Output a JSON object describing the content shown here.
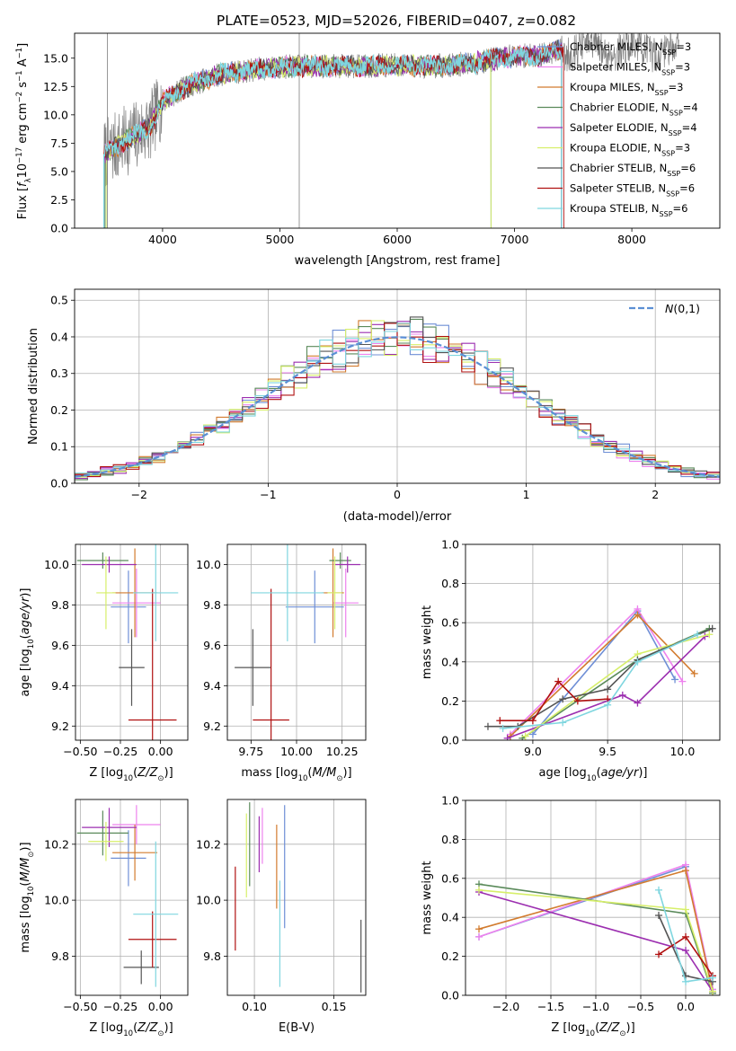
{
  "figure": {
    "title": "PLATE=0523, MJD=52026, FIBERID=0407, z=0.082"
  },
  "colors": {
    "chabrier_miles": "#6f8fd6",
    "salpeter_miles": "#ee82ee",
    "kroupa_miles": "#d27b2e",
    "chabrier_elodie": "#5a8a5a",
    "salpeter_elodie": "#9c2fb0",
    "kroupa_elodie": "#d7ef6a",
    "chabrier_stelib": "#555555",
    "salpeter_stelib": "#b01010",
    "kroupa_stelib": "#7fd6df",
    "normal_curve": "#5b8fd4",
    "grid": "#b0b0b0"
  },
  "chart_data": [
    {
      "id": "spectrum",
      "type": "line",
      "xlabel": "wavelength [Angstrom, rest frame]",
      "ylabel": "Flux [f_λ10^-17 erg cm^-2 s^-1 A^-1]",
      "xlim": [
        3250,
        8750
      ],
      "ylim": [
        0,
        17.2
      ],
      "xticks": [
        4000,
        5000,
        6000,
        7000,
        8000
      ],
      "yticks": [
        0.0,
        2.5,
        5.0,
        7.5,
        10.0,
        12.5,
        15.0
      ],
      "grid": false,
      "legend_position": "upper-right",
      "legend": [
        {
          "key": "chabrier_miles",
          "label": "Chabrier MILES, N",
          "sub": "SSP",
          "suffix": "=3"
        },
        {
          "key": "salpeter_miles",
          "label": "Salpeter MILES, N",
          "sub": "SSP",
          "suffix": "=3"
        },
        {
          "key": "kroupa_miles",
          "label": "Kroupa MILES, N",
          "sub": "SSP",
          "suffix": "=3"
        },
        {
          "key": "chabrier_elodie",
          "label": "Chabrier ELODIE, N",
          "sub": "SSP",
          "suffix": "=4"
        },
        {
          "key": "salpeter_elodie",
          "label": "Salpeter ELODIE, N",
          "sub": "SSP",
          "suffix": "=4"
        },
        {
          "key": "kroupa_elodie",
          "label": "Kroupa ELODIE, N",
          "sub": "SSP",
          "suffix": "=3"
        },
        {
          "key": "chabrier_stelib",
          "label": "Chabrier STELIB, N",
          "sub": "SSP",
          "suffix": "=6"
        },
        {
          "key": "salpeter_stelib",
          "label": "Salpeter STELIB, N",
          "sub": "SSP",
          "suffix": "=6"
        },
        {
          "key": "kroupa_stelib",
          "label": "Kroupa STELIB, N",
          "sub": "SSP",
          "suffix": "=6"
        }
      ],
      "continuum_x": [
        3500,
        3700,
        3900,
        4000,
        4200,
        4500,
        4800,
        5000,
        5200,
        5500,
        5800,
        6000,
        6300,
        6600,
        7000,
        7200,
        7400
      ],
      "continuum_y": [
        6.5,
        7.8,
        9.0,
        11.2,
        12.5,
        13.6,
        14.0,
        14.2,
        14.3,
        14.3,
        14.3,
        14.4,
        14.3,
        14.5,
        15.2,
        15.2,
        15.8
      ]
    },
    {
      "id": "residuals",
      "type": "histogram",
      "xlabel": "(data-model)/error",
      "ylabel": "Normed distribution",
      "xlim": [
        -2.5,
        2.5
      ],
      "ylim": [
        0,
        0.53
      ],
      "xticks": [
        -2,
        -1,
        0,
        1,
        2
      ],
      "yticks": [
        0.0,
        0.1,
        0.2,
        0.3,
        0.4,
        0.5
      ],
      "grid": true,
      "legend_position": "upper-right",
      "curve_label": "N(0,1)",
      "bin_width": 0.1
    },
    {
      "id": "age_vs_Z",
      "type": "errorbar",
      "xlabel": "Z [log10(Z/Z⊙)]",
      "ylabel": "age [log10(age/yr)]",
      "xlim": [
        -0.53,
        0.17
      ],
      "ylim": [
        9.13,
        10.1
      ],
      "xticks": [
        -0.5,
        -0.25,
        0.0
      ],
      "yticks": [
        9.2,
        9.4,
        9.6,
        9.8,
        10.0
      ],
      "grid": true,
      "points": [
        {
          "key": "chabrier_miles",
          "x": -0.2,
          "xerr": 0.11,
          "y": 9.79,
          "yerr": 0.18
        },
        {
          "key": "salpeter_miles",
          "x": -0.15,
          "xerr": 0.15,
          "y": 9.81,
          "yerr": 0.17
        },
        {
          "key": "kroupa_miles",
          "x": -0.16,
          "xerr": 0.14,
          "y": 9.86,
          "yerr": 0.22
        },
        {
          "key": "chabrier_elodie",
          "x": -0.36,
          "xerr": 0.16,
          "y": 10.02,
          "yerr": 0.04
        },
        {
          "key": "salpeter_elodie",
          "x": -0.32,
          "xerr": 0.17,
          "y": 10.0,
          "yerr": 0.04
        },
        {
          "key": "kroupa_elodie",
          "x": -0.34,
          "xerr": 0.06,
          "y": 9.86,
          "yerr": 0.18
        },
        {
          "key": "chabrier_stelib",
          "x": -0.18,
          "xerr": 0.08,
          "y": 9.49,
          "yerr": 0.19
        },
        {
          "key": "salpeter_stelib",
          "x": -0.05,
          "xerr": 0.15,
          "y": 9.23,
          "yerr": 0.65
        },
        {
          "key": "kroupa_stelib",
          "x": -0.03,
          "xerr": 0.14,
          "y": 9.86,
          "yerr": 0.24
        }
      ]
    },
    {
      "id": "age_vs_mass",
      "type": "errorbar",
      "xlabel": "mass [log10(M/M⊙)]",
      "ylabel": "",
      "xlim": [
        9.62,
        10.38
      ],
      "ylim": [
        9.13,
        10.1
      ],
      "xticks": [
        9.75,
        10.0,
        10.25
      ],
      "yticks": [
        9.2,
        9.4,
        9.6,
        9.8,
        10.0
      ],
      "grid": true,
      "points": [
        {
          "key": "chabrier_miles",
          "x": 10.1,
          "xerr": 0.16,
          "y": 9.79,
          "yerr": 0.18
        },
        {
          "key": "salpeter_miles",
          "x": 10.27,
          "xerr": 0.07,
          "y": 9.81,
          "yerr": 0.17
        },
        {
          "key": "kroupa_miles",
          "x": 10.2,
          "xerr": 0.06,
          "y": 9.86,
          "yerr": 0.22
        },
        {
          "key": "chabrier_elodie",
          "x": 10.24,
          "xerr": 0.06,
          "y": 10.02,
          "yerr": 0.04
        },
        {
          "key": "salpeter_elodie",
          "x": 10.28,
          "xerr": 0.07,
          "y": 10.0,
          "yerr": 0.04
        },
        {
          "key": "kroupa_elodie",
          "x": 10.21,
          "xerr": 0.04,
          "y": 9.86,
          "yerr": 0.18
        },
        {
          "key": "chabrier_stelib",
          "x": 9.76,
          "xerr": 0.1,
          "y": 9.49,
          "yerr": 0.19
        },
        {
          "key": "salpeter_stelib",
          "x": 9.86,
          "xerr": 0.1,
          "y": 9.23,
          "yerr": 0.65
        },
        {
          "key": "kroupa_stelib",
          "x": 9.95,
          "xerr": 0.2,
          "y": 9.86,
          "yerr": 0.24
        }
      ]
    },
    {
      "id": "weight_vs_age",
      "type": "line",
      "xlabel": "age [log10(age/yr)]",
      "ylabel": "mass weight",
      "xlim": [
        8.55,
        10.25
      ],
      "ylim": [
        0,
        1.0
      ],
      "xticks": [
        9.0,
        9.5,
        10.0
      ],
      "yticks": [
        0.0,
        0.2,
        0.4,
        0.6,
        0.8,
        1.0
      ],
      "grid": true,
      "series": [
        {
          "key": "chabrier_miles",
          "x": [
            9.0,
            9.7,
            9.95
          ],
          "y": [
            0.03,
            0.66,
            0.31
          ]
        },
        {
          "key": "salpeter_miles",
          "x": [
            8.85,
            9.7,
            10.0
          ],
          "y": [
            0.03,
            0.67,
            0.3
          ]
        },
        {
          "key": "kroupa_miles",
          "x": [
            8.85,
            9.7,
            10.08
          ],
          "y": [
            0.02,
            0.64,
            0.34
          ]
        },
        {
          "key": "chabrier_elodie",
          "x": [
            8.93,
            9.7,
            10.18
          ],
          "y": [
            0.01,
            0.41,
            0.57
          ]
        },
        {
          "key": "salpeter_elodie",
          "x": [
            8.83,
            9.6,
            9.7,
            10.15
          ],
          "y": [
            0.01,
            0.23,
            0.19,
            0.53
          ]
        },
        {
          "key": "kroupa_elodie",
          "x": [
            8.95,
            9.7,
            10.18
          ],
          "y": [
            0.02,
            0.44,
            0.54
          ]
        },
        {
          "key": "chabrier_stelib",
          "x": [
            8.7,
            8.9,
            9.2,
            9.5,
            9.7,
            10.2
          ],
          "y": [
            0.07,
            0.07,
            0.21,
            0.26,
            0.41,
            0.57
          ]
        },
        {
          "key": "salpeter_stelib",
          "x": [
            8.78,
            9.0,
            9.17,
            9.3,
            9.5
          ],
          "y": [
            0.1,
            0.1,
            0.3,
            0.2,
            0.21
          ]
        },
        {
          "key": "kroupa_stelib",
          "x": [
            8.8,
            9.2,
            9.5,
            9.7,
            10.1
          ],
          "y": [
            0.06,
            0.09,
            0.18,
            0.4,
            0.54
          ]
        }
      ]
    },
    {
      "id": "mass_vs_Z",
      "type": "errorbar",
      "xlabel": "Z [log10(Z/Z⊙)]",
      "ylabel": "mass [log10(M/M⊙)]",
      "xlim": [
        -0.53,
        0.17
      ],
      "ylim": [
        9.66,
        10.36
      ],
      "xticks": [
        -0.5,
        -0.25,
        0.0
      ],
      "yticks": [
        9.8,
        10.0,
        10.2
      ],
      "grid": true,
      "points": [
        {
          "key": "chabrier_miles",
          "x": -0.2,
          "xerr": 0.11,
          "y": 10.15,
          "yerr": 0.1
        },
        {
          "key": "salpeter_miles",
          "x": -0.15,
          "xerr": 0.15,
          "y": 10.27,
          "yerr": 0.07
        },
        {
          "key": "kroupa_miles",
          "x": -0.16,
          "xerr": 0.14,
          "y": 10.17,
          "yerr": 0.1
        },
        {
          "key": "chabrier_elodie",
          "x": -0.36,
          "xerr": 0.16,
          "y": 10.24,
          "yerr": 0.08
        },
        {
          "key": "salpeter_elodie",
          "x": -0.32,
          "xerr": 0.17,
          "y": 10.26,
          "yerr": 0.07
        },
        {
          "key": "kroupa_elodie",
          "x": -0.34,
          "xerr": 0.11,
          "y": 10.21,
          "yerr": 0.07
        },
        {
          "key": "chabrier_stelib",
          "x": -0.12,
          "xerr": 0.11,
          "y": 9.76,
          "yerr": 0.06
        },
        {
          "key": "salpeter_stelib",
          "x": -0.05,
          "xerr": 0.15,
          "y": 9.86,
          "yerr": 0.1
        },
        {
          "key": "kroupa_stelib",
          "x": -0.03,
          "xerr": 0.14,
          "y": 9.95,
          "yerr": 0.26
        }
      ]
    },
    {
      "id": "mass_vs_ebv",
      "type": "errorbar",
      "xlabel": "E(B-V)",
      "ylabel": "",
      "xlim": [
        0.083,
        0.17
      ],
      "ylim": [
        9.66,
        10.36
      ],
      "xticks": [
        0.1,
        0.15
      ],
      "yticks": [
        9.8,
        10.0,
        10.2
      ],
      "grid": true,
      "points": [
        {
          "key": "chabrier_miles",
          "x": 0.119,
          "xerr": 0,
          "y": 10.12,
          "yerr": 0.22
        },
        {
          "key": "salpeter_miles",
          "x": 0.105,
          "xerr": 0,
          "y": 10.23,
          "yerr": 0.1
        },
        {
          "key": "kroupa_miles",
          "x": 0.114,
          "xerr": 0,
          "y": 10.12,
          "yerr": 0.15
        },
        {
          "key": "chabrier_elodie",
          "x": 0.097,
          "xerr": 0,
          "y": 10.2,
          "yerr": 0.15
        },
        {
          "key": "salpeter_elodie",
          "x": 0.103,
          "xerr": 0,
          "y": 10.2,
          "yerr": 0.1
        },
        {
          "key": "kroupa_elodie",
          "x": 0.095,
          "xerr": 0,
          "y": 10.16,
          "yerr": 0.15
        },
        {
          "key": "chabrier_stelib",
          "x": 0.167,
          "xerr": 0,
          "y": 9.8,
          "yerr": 0.13
        },
        {
          "key": "salpeter_stelib",
          "x": 0.088,
          "xerr": 0,
          "y": 9.97,
          "yerr": 0.15
        },
        {
          "key": "kroupa_stelib",
          "x": 0.116,
          "xerr": 0,
          "y": 9.88,
          "yerr": 0.19
        }
      ]
    },
    {
      "id": "weight_vs_Z",
      "type": "line",
      "xlabel": "Z [log10(Z/Z⊙)]",
      "ylabel": "mass weight",
      "xlim": [
        -2.45,
        0.38
      ],
      "ylim": [
        0,
        1.0
      ],
      "xticks": [
        -2.0,
        -1.5,
        -1.0,
        -0.5,
        0.0
      ],
      "yticks": [
        0.0,
        0.2,
        0.4,
        0.6,
        0.8,
        1.0
      ],
      "grid": true,
      "series": [
        {
          "key": "chabrier_miles",
          "x": [
            -2.3,
            0.0,
            0.3
          ],
          "y": [
            0.3,
            0.66,
            0.03
          ]
        },
        {
          "key": "salpeter_miles",
          "x": [
            -2.3,
            0.0,
            0.3
          ],
          "y": [
            0.3,
            0.67,
            0.03
          ]
        },
        {
          "key": "kroupa_miles",
          "x": [
            -2.3,
            0.0,
            0.3
          ],
          "y": [
            0.34,
            0.64,
            0.02
          ]
        },
        {
          "key": "chabrier_elodie",
          "x": [
            -2.3,
            0.0,
            0.3
          ],
          "y": [
            0.57,
            0.42,
            0.01
          ]
        },
        {
          "key": "salpeter_elodie",
          "x": [
            -2.3,
            0.0,
            0.3
          ],
          "y": [
            0.53,
            0.23,
            0.02
          ]
        },
        {
          "key": "kroupa_elodie",
          "x": [
            -2.3,
            0.0,
            0.3
          ],
          "y": [
            0.54,
            0.44,
            0.02
          ]
        },
        {
          "key": "chabrier_stelib",
          "x": [
            -0.3,
            0.0,
            0.3
          ],
          "y": [
            0.41,
            0.1,
            0.07
          ]
        },
        {
          "key": "salpeter_stelib",
          "x": [
            -0.3,
            0.0,
            0.3
          ],
          "y": [
            0.21,
            0.3,
            0.1
          ]
        },
        {
          "key": "kroupa_stelib",
          "x": [
            -0.3,
            0.0,
            0.3
          ],
          "y": [
            0.54,
            0.07,
            0.09
          ]
        }
      ]
    }
  ]
}
